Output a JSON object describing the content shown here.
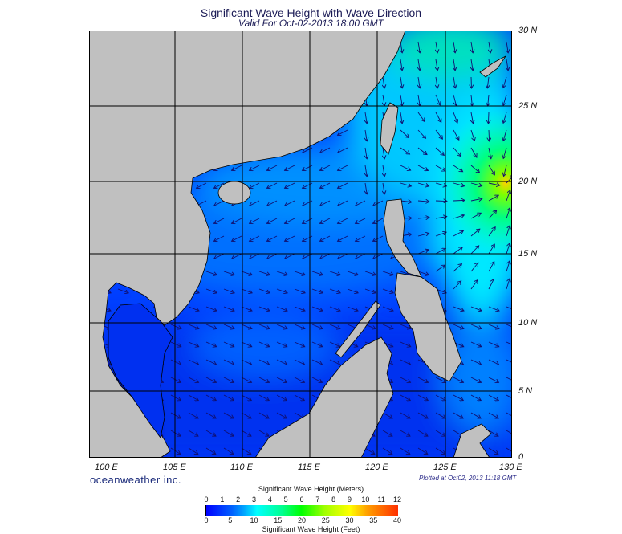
{
  "header": {
    "title": "Significant Wave Height with Wave Direction",
    "subtitle": "Valid For Oct-02-2013 18:00 GMT"
  },
  "map": {
    "lon_labels": [
      "100 E",
      "105 E",
      "110 E",
      "115 E",
      "120 E",
      "125 E",
      "130 E"
    ],
    "lat_labels": [
      "30 N",
      "25 N",
      "20 N",
      "15 N",
      "10 N",
      "5 N",
      "0"
    ],
    "land_color": "#c0c0c0",
    "max_wave_region": "east of Luzon near 20 N 130 E"
  },
  "footer": {
    "brand": "oceanweather inc.",
    "plotted": "Plotted at Oct02, 2013 11:18 GMT"
  },
  "colorbar": {
    "title_top": "Significant Wave Height (Meters)",
    "title_bottom": "Significant Wave Height (Feet)",
    "meters": [
      "0",
      "1",
      "2",
      "3",
      "4",
      "5",
      "6",
      "7",
      "8",
      "9",
      "10",
      "11",
      "12"
    ],
    "feet": [
      "0",
      "5",
      "10",
      "15",
      "20",
      "25",
      "30",
      "35",
      "40"
    ],
    "colors": [
      "#000000",
      "#0000ff",
      "#00a0ff",
      "#00ffff",
      "#00ff00",
      "#ffff00",
      "#ff3000"
    ]
  }
}
